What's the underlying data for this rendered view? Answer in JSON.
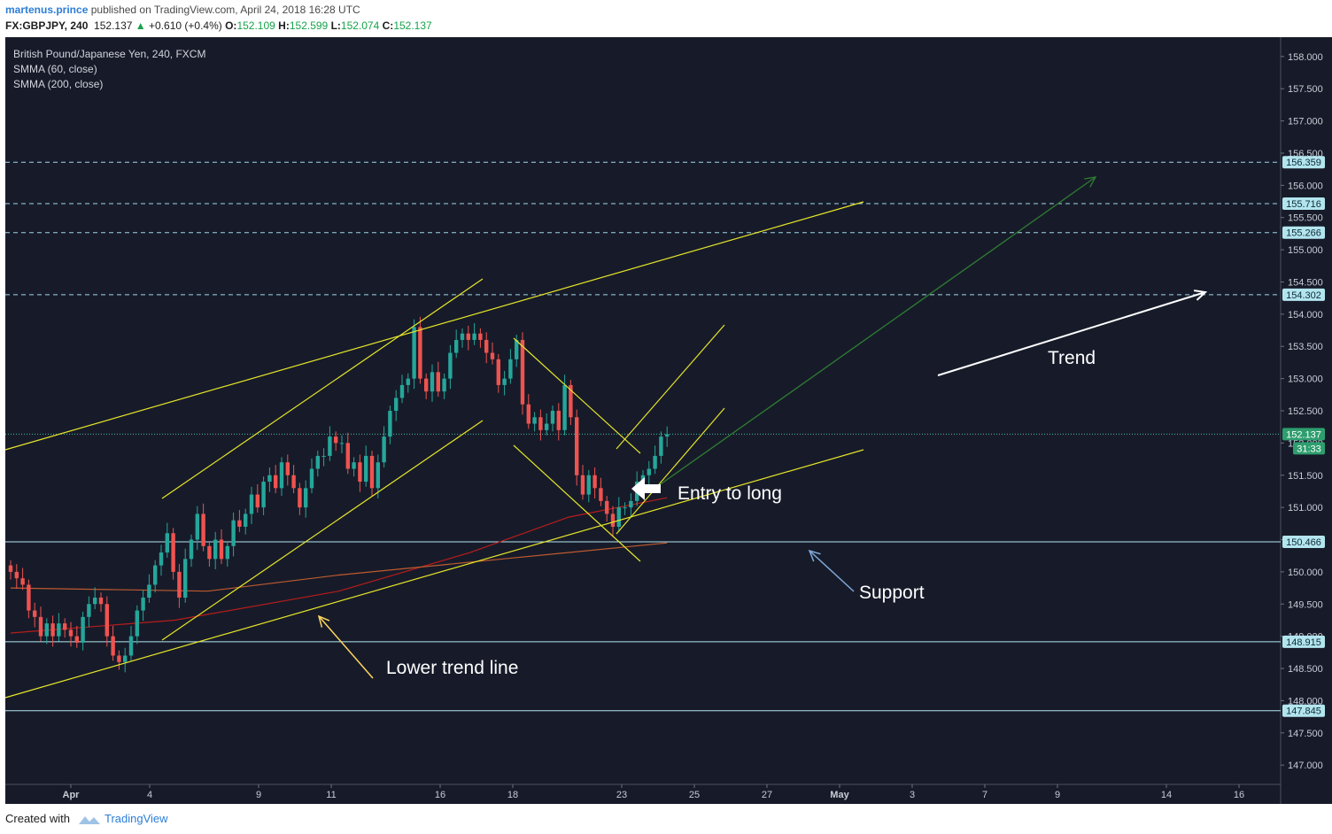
{
  "header": {
    "author": "martenus.prince",
    "published_text": "published on TradingView.com, April 24, 2018 16:28 UTC",
    "symbol": "FX:GBPJPY, 240",
    "last": "152.137",
    "change_arrow": "▲",
    "change": "+0.610 (+0.4%)",
    "open_label": "O:",
    "open": "152.109",
    "high_label": "H:",
    "high": "152.599",
    "low_label": "L:",
    "low": "152.074",
    "close_label": "C:",
    "close": "152.137"
  },
  "legend": {
    "title": "British Pound/Japanese Yen, 240, FXCM",
    "indicator1": "SMMA (60, close)",
    "indicator2": "SMMA (200, close)"
  },
  "annotations": {
    "trend": "Trend",
    "entry": "Entry to long",
    "support": "Support",
    "lower_trend": "Lower trend line"
  },
  "footer": {
    "created_with": "Created with",
    "brand": "TradingView"
  },
  "colors": {
    "background": "#171b29",
    "up": "#26a69a",
    "down": "#ef5350",
    "trendlines": "#e6e62a",
    "projection": "#2e7d32",
    "smma60": "#b71c1c",
    "smma200": "#bf5a2f",
    "hline_dashed": "#9fd7e8",
    "hline_solid": "#b3e5f0",
    "price_badge": "#b3e5ef",
    "last_badge": "#2e9e6e"
  },
  "chart_data": {
    "type": "candlestick",
    "title": "British Pound/Japanese Yen, 240, FXCM",
    "ylim": [
      146.7,
      158.3
    ],
    "y_ticks": [
      "147.000",
      "147.500",
      "148.000",
      "148.500",
      "149.000",
      "149.500",
      "150.000",
      "150.500",
      "151.000",
      "151.500",
      "152.000",
      "152.500",
      "153.000",
      "153.500",
      "154.000",
      "154.500",
      "155.000",
      "155.500",
      "156.000",
      "156.500",
      "157.000",
      "157.500",
      "158.000"
    ],
    "x_ticks": [
      "Apr",
      "4",
      "9",
      "11",
      "16",
      "18",
      "23",
      "25",
      "27",
      "May",
      "3",
      "7",
      "9",
      "14",
      "16"
    ],
    "horizontal_levels": [
      {
        "price": 156.359,
        "label": "156.359",
        "style": "dashed"
      },
      {
        "price": 155.716,
        "label": "155.716",
        "style": "dashed"
      },
      {
        "price": 155.266,
        "label": "155.266",
        "style": "dashed"
      },
      {
        "price": 154.302,
        "label": "154.302",
        "style": "dashed"
      },
      {
        "price": 150.466,
        "label": "150.466",
        "style": "solid"
      },
      {
        "price": 148.915,
        "label": "148.915",
        "style": "solid"
      },
      {
        "price": 147.845,
        "label": "147.845",
        "style": "solid"
      }
    ],
    "last_price": {
      "price": 152.137,
      "label": "152.137",
      "countdown": "31:33"
    },
    "closes": [
      150.0,
      149.9,
      149.8,
      149.4,
      149.3,
      149.0,
      149.2,
      149.0,
      149.2,
      149.1,
      149.0,
      148.9,
      149.3,
      149.5,
      149.6,
      149.5,
      149.0,
      148.7,
      148.6,
      148.7,
      149.0,
      149.4,
      149.6,
      149.8,
      150.1,
      150.3,
      150.6,
      150.0,
      149.6,
      150.2,
      150.5,
      150.9,
      150.4,
      150.2,
      150.5,
      150.2,
      150.4,
      150.8,
      150.7,
      150.9,
      151.2,
      151.0,
      151.4,
      151.5,
      151.3,
      151.7,
      151.5,
      151.3,
      151.0,
      151.3,
      151.6,
      151.8,
      151.8,
      152.1,
      152.0,
      152.0,
      151.6,
      151.7,
      151.4,
      151.8,
      151.3,
      151.7,
      152.1,
      152.5,
      152.7,
      152.9,
      153.0,
      153.8,
      153.0,
      152.8,
      153.1,
      152.8,
      153.0,
      153.4,
      153.6,
      153.7,
      153.6,
      153.7,
      153.6,
      153.4,
      153.3,
      152.9,
      153.0,
      153.3,
      153.6,
      152.6,
      152.3,
      152.4,
      152.2,
      152.3,
      152.5,
      152.2,
      152.9,
      152.4,
      151.5,
      151.2,
      151.5,
      151.3,
      151.1,
      150.9,
      150.7,
      151.0,
      151.0,
      151.1,
      151.4,
      151.5,
      151.6,
      151.8,
      152.1,
      152.137
    ],
    "series": [
      {
        "name": "SMMA (60, close)",
        "values": [
          {
            "x": 0.0,
            "y": 149.05
          },
          {
            "x": 0.25,
            "y": 149.25
          },
          {
            "x": 0.5,
            "y": 149.7
          },
          {
            "x": 0.7,
            "y": 150.3
          },
          {
            "x": 0.85,
            "y": 150.85
          },
          {
            "x": 1.0,
            "y": 151.15
          }
        ]
      },
      {
        "name": "SMMA (200, close)",
        "values": [
          {
            "x": 0.0,
            "y": 149.75
          },
          {
            "x": 0.3,
            "y": 149.7
          },
          {
            "x": 0.5,
            "y": 149.95
          },
          {
            "x": 0.75,
            "y": 150.2
          },
          {
            "x": 1.0,
            "y": 150.45
          }
        ]
      }
    ]
  }
}
